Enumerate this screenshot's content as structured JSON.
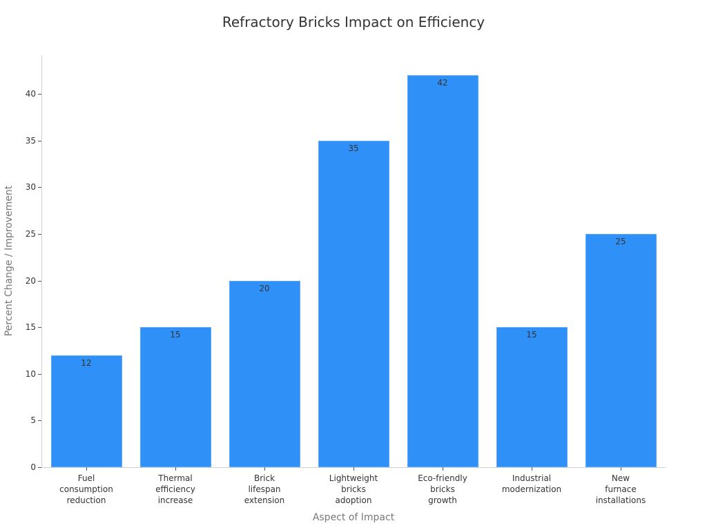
{
  "chart_data": {
    "type": "bar",
    "title": "Refractory Bricks Impact on Efficiency",
    "xlabel": "Aspect of Impact",
    "ylabel": "Percent Change / Improvement",
    "categories": [
      "Fuel\nconsumption\nreduction",
      "Thermal\nefficiency\nincrease",
      "Brick\nlifespan\nextension",
      "Lightweight\nbricks\nadoption",
      "Eco-friendly\nbricks\ngrowth",
      "Industrial\nmodernization",
      "New\nfurnace\ninstallations"
    ],
    "values": [
      12,
      15,
      20,
      35,
      42,
      15,
      25
    ],
    "value_labels": [
      "12",
      "15",
      "20",
      "35",
      "42",
      "15",
      "25"
    ],
    "ylim": [
      0,
      44
    ],
    "yticks": [
      "0",
      "5",
      "10",
      "15",
      "20",
      "25",
      "30",
      "35",
      "40"
    ],
    "grid": false,
    "legend": null,
    "bar_color": "#2f90f7"
  }
}
